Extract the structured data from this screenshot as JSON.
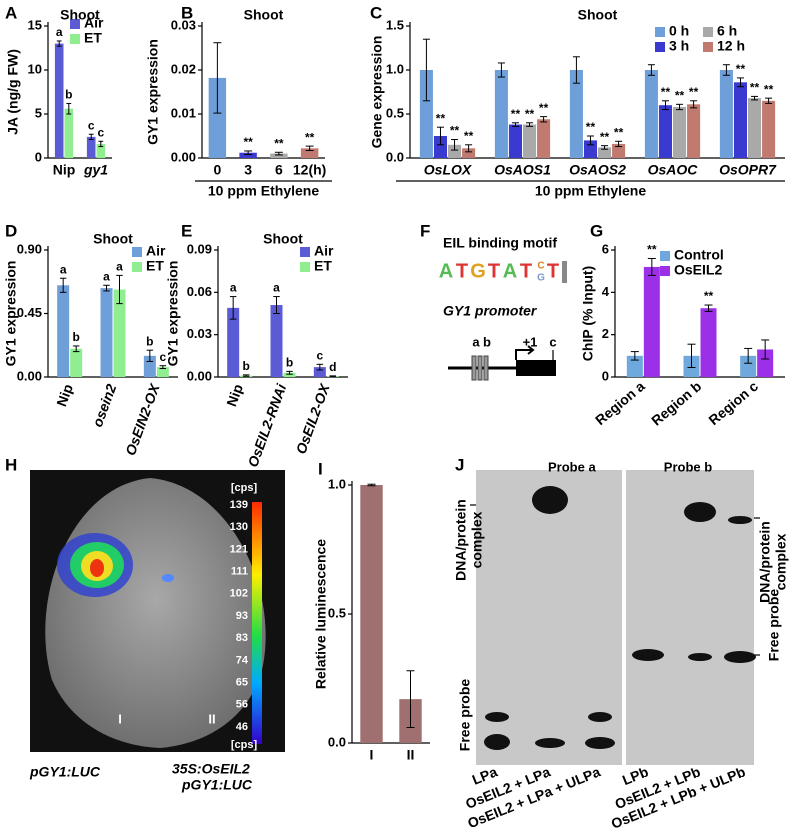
{
  "chart_data": [
    {
      "type": "bar",
      "panel": "A",
      "title": "Shoot",
      "ylabel": "JA (ng/g FW)",
      "categories": [
        "Nip",
        "gy1"
      ],
      "series": [
        {
          "name": "Air",
          "color": "#5b5bd6",
          "values": [
            13.0,
            2.4
          ],
          "errors": [
            0.3,
            0.3
          ],
          "annotations": [
            "a",
            "c"
          ]
        },
        {
          "name": "ET",
          "color": "#90ee90",
          "values": [
            5.6,
            1.6
          ],
          "errors": [
            0.6,
            0.3
          ],
          "annotations": [
            "b",
            "c"
          ]
        }
      ],
      "ylim": [
        0,
        15
      ],
      "yticks": [
        0,
        5,
        10,
        15
      ]
    },
    {
      "type": "bar",
      "panel": "B",
      "title": "Shoot",
      "ylabel": "GY1 expression",
      "xlabel": "10 ppm Ethylene",
      "categories": [
        "0",
        "3",
        "6",
        "12(h)"
      ],
      "values": [
        0.0182,
        0.0012,
        0.001,
        0.0022
      ],
      "errors": [
        0.008,
        0.0004,
        0.0003,
        0.0005
      ],
      "colors": [
        "#6f9fd8",
        "#3a3ad0",
        "#a9a9a9",
        "#c07a70"
      ],
      "annotations": [
        null,
        "**",
        "**",
        "**"
      ],
      "ylim": [
        0,
        0.03
      ],
      "yticks": [
        {
          "value": 0,
          "label": "0.00"
        },
        0.01,
        0.02,
        0.03
      ]
    },
    {
      "type": "bar",
      "panel": "C",
      "title": "Shoot",
      "ylabel": "Gene expression",
      "xlabel": "10 ppm Ethylene",
      "categories": [
        "OsLOX",
        "OsAOS1",
        "OsAOS2",
        "OsAOC",
        "OsOPR7"
      ],
      "series": [
        {
          "name": "0 h",
          "color": "#6f9fd8",
          "values": [
            1.0,
            1.0,
            1.0,
            1.0,
            1.0
          ],
          "errors": [
            0.35,
            0.08,
            0.15,
            0.06,
            0.06
          ],
          "annotations": [
            null,
            null,
            null,
            null,
            null
          ]
        },
        {
          "name": "3 h",
          "color": "#3a3ad0",
          "values": [
            0.25,
            0.38,
            0.2,
            0.6,
            0.86
          ],
          "errors": [
            0.1,
            0.02,
            0.05,
            0.05,
            0.05
          ],
          "annotations": [
            "**",
            "**",
            "**",
            "**",
            "**"
          ]
        },
        {
          "name": "6 h",
          "color": "#a9a9a9",
          "values": [
            0.15,
            0.38,
            0.12,
            0.58,
            0.68
          ],
          "errors": [
            0.06,
            0.02,
            0.02,
            0.03,
            0.02
          ],
          "annotations": [
            "**",
            "**",
            "**",
            "**",
            "**"
          ]
        },
        {
          "name": "12 h",
          "color": "#c07a70",
          "values": [
            0.11,
            0.44,
            0.16,
            0.61,
            0.65
          ],
          "errors": [
            0.04,
            0.03,
            0.03,
            0.04,
            0.03
          ],
          "annotations": [
            "**",
            "**",
            "**",
            "**",
            "**"
          ]
        }
      ],
      "ylim": [
        0,
        1.5
      ],
      "yticks": [
        {
          "value": 0,
          "label": "0.0"
        },
        0.5,
        {
          "value": 1,
          "label": "1.0"
        },
        1.5
      ]
    },
    {
      "type": "bar",
      "panel": "D",
      "title": "Shoot",
      "ylabel": "GY1 expression",
      "categories": [
        "Nip",
        "osein2",
        "OsEIN2-OX"
      ],
      "series": [
        {
          "name": "Air",
          "color": "#6f9fd8",
          "values": [
            0.65,
            0.63,
            0.15
          ],
          "errors": [
            0.05,
            0.02,
            0.04
          ],
          "annotations": [
            "a",
            "a",
            "b"
          ]
        },
        {
          "name": "ET",
          "color": "#90ee90",
          "values": [
            0.2,
            0.62,
            0.07
          ],
          "errors": [
            0.02,
            0.1,
            0.01
          ],
          "annotations": [
            "b",
            "a",
            "c"
          ]
        }
      ],
      "ylim": [
        0,
        0.9
      ],
      "yticks": [
        {
          "value": 0,
          "label": "0.00"
        },
        0.45,
        {
          "value": 0.9,
          "label": "0.90"
        }
      ]
    },
    {
      "type": "bar",
      "panel": "E",
      "title": "Shoot",
      "ylabel": "GY1 expression",
      "categories": [
        "Nip",
        "OsEIL2-RNAi",
        "OsEIL2-OX"
      ],
      "series": [
        {
          "name": "Air",
          "color": "#5b5bd6",
          "values": [
            0.049,
            0.051,
            0.007
          ],
          "errors": [
            0.008,
            0.006,
            0.002
          ],
          "annotations": [
            "a",
            "a",
            "c"
          ]
        },
        {
          "name": "ET",
          "color": "#90ee90",
          "values": [
            0.001,
            0.003,
            0.0005
          ],
          "errors": [
            0.0005,
            0.001,
            0.0003
          ],
          "annotations": [
            "b",
            "b",
            "d"
          ]
        }
      ],
      "ylim": [
        0,
        0.09
      ],
      "yticks": [
        {
          "value": 0,
          "label": "0.00"
        },
        0.03,
        0.06,
        0.09
      ]
    },
    {
      "type": "bar",
      "panel": "G",
      "ylabel": "ChIP (% Input)",
      "categories": [
        "Region a",
        "Region b",
        "Region c"
      ],
      "series": [
        {
          "name": "Control",
          "color": "#6fa8dc",
          "values": [
            1.0,
            1.0,
            1.0
          ],
          "errors": [
            0.2,
            0.55,
            0.35
          ],
          "annotations": [
            null,
            null,
            null
          ]
        },
        {
          "name": "OsEIL2",
          "color": "#9b30e8",
          "values": [
            5.2,
            3.25,
            1.3
          ],
          "errors": [
            0.4,
            0.15,
            0.45
          ],
          "annotations": [
            "**",
            "**",
            null
          ]
        }
      ],
      "ylim": [
        0,
        6
      ],
      "yticks": [
        0,
        2,
        4,
        6
      ]
    },
    {
      "type": "bar",
      "panel": "I",
      "ylabel": "Relative luminescence",
      "categories": [
        "I",
        "II"
      ],
      "values": [
        1.0,
        0.17
      ],
      "errors": [
        0.003,
        0.11
      ],
      "colors": [
        "#a07070",
        "#a07070"
      ],
      "ylim": [
        0,
        1.0
      ],
      "yticks": [
        {
          "value": 0,
          "label": "0.0"
        },
        0.5,
        {
          "value": 1,
          "label": "1.0"
        }
      ]
    }
  ],
  "panels": {
    "F": {
      "panel": "F",
      "motif_title": "EIL binding motif",
      "motif": [
        "A",
        "T",
        "G",
        "T",
        "A",
        "T",
        "C",
        "G",
        "T"
      ],
      "promoter_title": "GY1 promoter",
      "sites": [
        "a",
        "b",
        "+1",
        "c"
      ]
    },
    "H": {
      "panel": "H",
      "unit": "[cps]",
      "scale": [
        139,
        130,
        121,
        111,
        102,
        93,
        83,
        74,
        65,
        56,
        46
      ],
      "spots": [
        "I",
        "II"
      ],
      "captions": [
        "pGY1:LUC",
        "35S:OsEIL2",
        "pGY1:LUC"
      ]
    },
    "J": {
      "panel": "J",
      "probes": [
        "Probe a",
        "Probe b"
      ],
      "complex": [
        "DNA/protein",
        "complex"
      ],
      "free": "Free probe",
      "lanes": [
        "LPa",
        "OsEIL2 + LPa",
        "OsEIL2 + LPa + ULPa",
        "LPb",
        "OsEIL2 + LPb",
        "OsEIL2 + LPb + ULPb"
      ]
    }
  }
}
